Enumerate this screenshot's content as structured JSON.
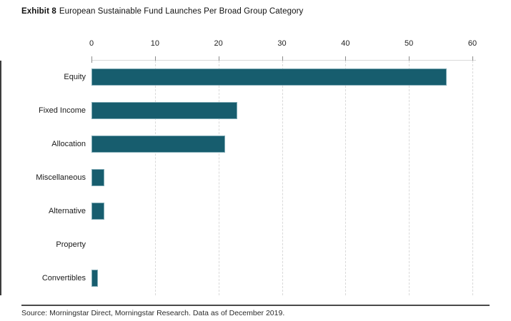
{
  "title": {
    "prefix": "Exhibit 8",
    "text": "European Sustainable Fund Launches Per Broad Group Category"
  },
  "source": "Source: Morningstar Direct, Morningstar Research. Data as of December 2019.",
  "colors": {
    "bar": "#175d6e",
    "bar_edge": "#7ea9b4",
    "gridline": "#d9d9d9",
    "axis": "#3d3d3d",
    "top_axis": "#d9d9d9",
    "divider": "#4a4a4a",
    "text": "#1a1a1a"
  },
  "chart_data": {
    "type": "bar",
    "orientation": "horizontal",
    "title": "European Sustainable Fund Launches Per Broad Group Category",
    "categories": [
      "Equity",
      "Fixed Income",
      "Allocation",
      "Miscellaneous",
      "Alternative",
      "Property",
      "Convertibles"
    ],
    "values": [
      56,
      23,
      21,
      2,
      2,
      0,
      1
    ],
    "xlabel": "",
    "ylabel": "",
    "xlim": [
      0,
      60
    ],
    "xticks": [
      0,
      10,
      20,
      30,
      40,
      50,
      60
    ],
    "grid": "vertical-dashed",
    "legend": false
  }
}
